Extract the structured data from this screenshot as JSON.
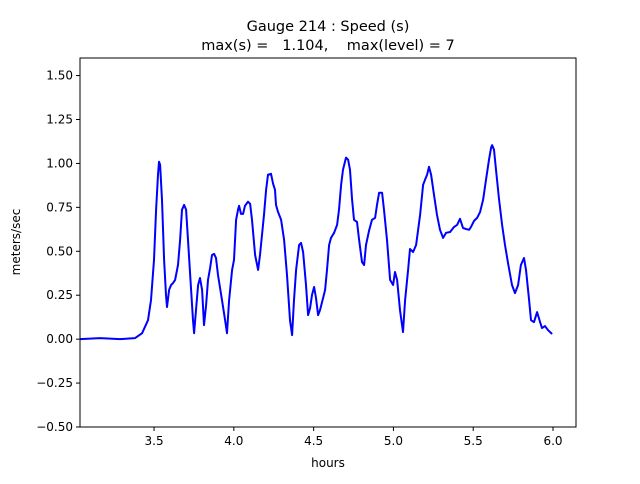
{
  "chart_data": {
    "type": "line",
    "title": "Gauge 214 : Speed (s)",
    "subtitle": "max(s) =   1.104,    max(level) = 7",
    "xlabel": "hours",
    "ylabel": "meters/sec",
    "xlim": [
      3.036,
      6.144
    ],
    "ylim": [
      -0.5,
      1.6
    ],
    "xticks": [
      3.5,
      4.0,
      4.5,
      5.0,
      5.5,
      6.0
    ],
    "xtick_labels": [
      "3.5",
      "4.0",
      "4.5",
      "5.0",
      "5.5",
      "6.0"
    ],
    "yticks": [
      -0.5,
      -0.25,
      0,
      0.25,
      0.5,
      0.75,
      1.0,
      1.25,
      1.5
    ],
    "ytick_labels": [
      "−0.50",
      "−0.25",
      "0.00",
      "0.25",
      "0.50",
      "0.75",
      "1.00",
      "1.25",
      "1.50"
    ],
    "grid": false,
    "series": [
      {
        "name": "speed",
        "color": "#0000ff",
        "x": [
          3.036,
          3.162,
          3.287,
          3.381,
          3.425,
          3.462,
          3.481,
          3.5,
          3.513,
          3.525,
          3.531,
          3.538,
          3.55,
          3.563,
          3.575,
          3.581,
          3.594,
          3.607,
          3.619,
          3.632,
          3.65,
          3.663,
          3.675,
          3.688,
          3.701,
          3.713,
          3.732,
          3.744,
          3.751,
          3.763,
          3.776,
          3.788,
          3.801,
          3.813,
          3.826,
          3.838,
          3.851,
          3.863,
          3.876,
          3.888,
          3.901,
          3.926,
          3.945,
          3.957,
          3.97,
          3.989,
          4.001,
          4.014,
          4.026,
          4.033,
          4.045,
          4.058,
          4.07,
          4.089,
          4.102,
          4.114,
          4.133,
          4.152,
          4.164,
          4.189,
          4.202,
          4.214,
          4.233,
          4.246,
          4.258,
          4.264,
          4.277,
          4.296,
          4.315,
          4.333,
          4.352,
          4.365,
          4.377,
          4.39,
          4.409,
          4.421,
          4.434,
          4.452,
          4.465,
          4.478,
          4.49,
          4.503,
          4.515,
          4.528,
          4.54,
          4.559,
          4.572,
          4.584,
          4.597,
          4.609,
          4.628,
          4.647,
          4.659,
          4.672,
          4.684,
          4.703,
          4.716,
          4.728,
          4.741,
          4.753,
          4.772,
          4.785,
          4.803,
          4.816,
          4.828,
          4.847,
          4.866,
          4.885,
          4.897,
          4.91,
          4.929,
          4.941,
          4.96,
          4.979,
          4.998,
          5.01,
          5.023,
          5.041,
          5.06,
          5.073,
          5.092,
          5.104,
          5.123,
          5.142,
          5.167,
          5.186,
          5.198,
          5.211,
          5.223,
          5.236,
          5.254,
          5.273,
          5.292,
          5.311,
          5.33,
          5.355,
          5.38,
          5.399,
          5.417,
          5.436,
          5.455,
          5.474,
          5.486,
          5.505,
          5.524,
          5.543,
          5.562,
          5.58,
          5.599,
          5.612,
          5.618,
          5.63,
          5.643,
          5.662,
          5.681,
          5.699,
          5.718,
          5.743,
          5.762,
          5.781,
          5.799,
          5.818,
          5.831,
          5.85,
          5.862,
          5.881,
          5.9,
          5.919,
          5.931,
          5.95,
          5.969,
          5.994
        ],
        "y": [
          0,
          0.006,
          0,
          0.006,
          0.034,
          0.108,
          0.222,
          0.451,
          0.736,
          0.936,
          1.01,
          0.993,
          0.793,
          0.451,
          0.251,
          0.183,
          0.28,
          0.308,
          0.319,
          0.337,
          0.422,
          0.565,
          0.736,
          0.764,
          0.736,
          0.565,
          0.28,
          0.108,
          0.034,
          0.165,
          0.308,
          0.348,
          0.28,
          0.08,
          0.194,
          0.337,
          0.405,
          0.479,
          0.485,
          0.462,
          0.365,
          0.222,
          0.108,
          0.034,
          0.222,
          0.394,
          0.451,
          0.679,
          0.736,
          0.759,
          0.713,
          0.713,
          0.759,
          0.782,
          0.77,
          0.679,
          0.479,
          0.394,
          0.479,
          0.707,
          0.85,
          0.936,
          0.941,
          0.884,
          0.85,
          0.764,
          0.724,
          0.679,
          0.565,
          0.365,
          0.108,
          0.023,
          0.222,
          0.394,
          0.536,
          0.548,
          0.496,
          0.308,
          0.137,
          0.177,
          0.251,
          0.297,
          0.234,
          0.137,
          0.165,
          0.234,
          0.28,
          0.394,
          0.536,
          0.576,
          0.605,
          0.65,
          0.736,
          0.878,
          0.964,
          1.033,
          1.021,
          0.964,
          0.793,
          0.679,
          0.667,
          0.565,
          0.439,
          0.422,
          0.536,
          0.616,
          0.679,
          0.69,
          0.764,
          0.833,
          0.833,
          0.736,
          0.565,
          0.337,
          0.308,
          0.382,
          0.337,
          0.165,
          0.04,
          0.222,
          0.394,
          0.513,
          0.496,
          0.536,
          0.707,
          0.878,
          0.907,
          0.936,
          0.981,
          0.936,
          0.821,
          0.707,
          0.622,
          0.576,
          0.605,
          0.61,
          0.639,
          0.65,
          0.685,
          0.633,
          0.627,
          0.622,
          0.639,
          0.673,
          0.69,
          0.724,
          0.793,
          0.907,
          1.021,
          1.09,
          1.104,
          1.078,
          0.964,
          0.793,
          0.65,
          0.536,
          0.434,
          0.308,
          0.262,
          0.308,
          0.422,
          0.462,
          0.394,
          0.222,
          0.108,
          0.097,
          0.154,
          0.097,
          0.063,
          0.074,
          0.051,
          0.029
        ]
      }
    ]
  }
}
